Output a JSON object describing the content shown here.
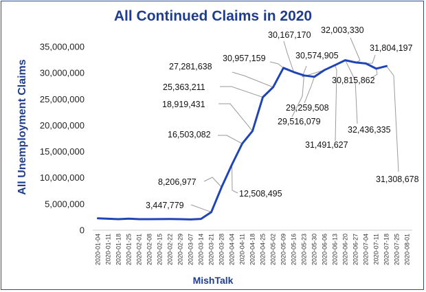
{
  "chart_data": {
    "type": "line",
    "title": "All Continued Claims in 2020",
    "xlabel": "MishTalk",
    "ylabel": "All Unemployment  Claims",
    "ylim": [
      0,
      35000000
    ],
    "yticks": [
      "0",
      "5,000,000",
      "10,000,000",
      "15,000,000",
      "20,000,000",
      "25,000,000",
      "30,000,000",
      "35,000,000"
    ],
    "ytick_values": [
      0,
      5000000,
      10000000,
      15000000,
      20000000,
      25000000,
      30000000,
      35000000
    ],
    "grid": false,
    "x": [
      "2020-01-04",
      "2020-01-11",
      "2020-01-18",
      "2020-01-25",
      "2020-02-01",
      "2020-02-08",
      "2020-02-15",
      "2020-02-22",
      "2020-02-29",
      "2020-03-07",
      "2020-03-14",
      "2020-03-21",
      "2020-03-28",
      "2020-04-04",
      "2020-04-11",
      "2020-04-18",
      "2020-04-25",
      "2020-05-02",
      "2020-05-09",
      "2020-05-16",
      "2020-05-23",
      "2020-05-30",
      "2020-06-06",
      "2020-06-13",
      "2020-06-20",
      "2020-06-27",
      "2020-07-04",
      "2020-07-11",
      "2020-07-18",
      "2020-07-25",
      "2020-08-01"
    ],
    "series": [
      {
        "color": "#1f45b5",
        "values": [
          2250000,
          2180000,
          2100000,
          2200000,
          2100000,
          2100000,
          2110000,
          2120000,
          2100000,
          2050000,
          2150000,
          3447779,
          8206977,
          12508495,
          16503082,
          18919431,
          25363211,
          27281638,
          30957159,
          30167170,
          29516079,
          29259508,
          30574905,
          31491627,
          32436335,
          32003330,
          31804197,
          30815862,
          31308678,
          null,
          null
        ]
      }
    ],
    "data_labels": [
      {
        "index": 11,
        "text": "3,447,779"
      },
      {
        "index": 12,
        "text": "8,206,977"
      },
      {
        "index": 13,
        "text": "12,508,495"
      },
      {
        "index": 14,
        "text": "16,503,082"
      },
      {
        "index": 15,
        "text": "18,919,431"
      },
      {
        "index": 16,
        "text": "25,363,211"
      },
      {
        "index": 17,
        "text": "27,281,638"
      },
      {
        "index": 18,
        "text": "30,957,159"
      },
      {
        "index": 19,
        "text": "30,167,170"
      },
      {
        "index": 20,
        "text": "29,516,079"
      },
      {
        "index": 21,
        "text": "29,259,508"
      },
      {
        "index": 22,
        "text": "30,574,905"
      },
      {
        "index": 23,
        "text": "31,491,627"
      },
      {
        "index": 24,
        "text": "32,436,335"
      },
      {
        "index": 25,
        "text": "32,003,330"
      },
      {
        "index": 26,
        "text": "31,804,197"
      },
      {
        "index": 27,
        "text": "30,815,862"
      },
      {
        "index": 28,
        "text": "31,308,678"
      }
    ]
  }
}
